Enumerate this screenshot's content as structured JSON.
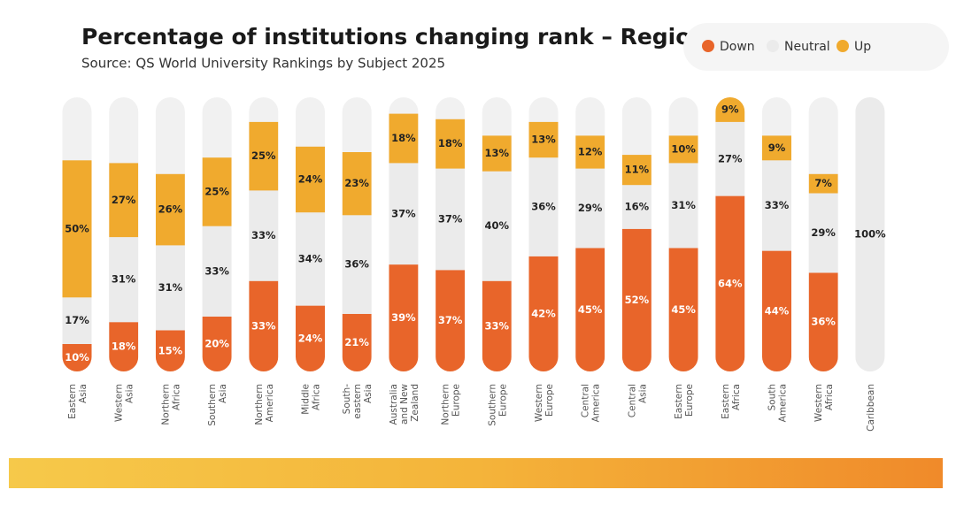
{
  "chart_data": {
    "type": "stacked_bar",
    "title": "Percentage of institutions changing rank – Region",
    "subtitle": "Source: QS World University Rankings by Subject 2025",
    "categories": [
      "Eastern Asia",
      "Western Asia",
      "Northern Africa",
      "Southern Asia",
      "Northern America",
      "Middle Africa",
      "South-eastern Asia",
      "Australia and New Zealand",
      "Northern Europe",
      "Southern Europe",
      "Western Europe",
      "Central America",
      "Central Asia",
      "Eastern Europe",
      "Eastern Africa",
      "South America",
      "Western Africa",
      "Caribbean"
    ],
    "ylim": [
      0,
      100
    ],
    "legend": "top-right",
    "series": [
      {
        "name": "Down",
        "color": "#e8652a",
        "values": [
          10,
          18,
          15,
          20,
          33,
          24,
          21,
          39,
          37,
          33,
          42,
          45,
          52,
          45,
          64,
          44,
          36,
          null
        ],
        "value_labels": [
          "10%",
          "18%",
          "15%",
          "20%",
          "33%",
          "24%",
          "21%",
          "39%",
          "37%",
          "33%",
          "42%",
          "45%",
          "52%",
          "45%",
          "64%",
          "44%",
          "36%",
          null
        ]
      },
      {
        "name": "Neutral",
        "color": "#ebebeb",
        "values": [
          17,
          31,
          31,
          33,
          33,
          34,
          36,
          37,
          37,
          40,
          36,
          29,
          16,
          31,
          27,
          33,
          29,
          100
        ],
        "value_labels": [
          "17%",
          "31%",
          "31%",
          "33%",
          "33%",
          "34%",
          "36%",
          "37%",
          "37%",
          "40%",
          "36%",
          "29%",
          "16%",
          "31%",
          "27%",
          "33%",
          "29%",
          "100%"
        ]
      },
      {
        "name": "Up",
        "color": "#f0aa2e",
        "values": [
          50,
          27,
          26,
          25,
          25,
          24,
          23,
          18,
          18,
          13,
          13,
          12,
          11,
          10,
          9,
          9,
          7,
          null
        ],
        "value_labels": [
          "50%",
          "27%",
          "26%",
          "25%",
          "25%",
          "24%",
          "23%",
          "18%",
          "18%",
          "13%",
          "13%",
          "12%",
          "11%",
          "10%",
          "9%",
          "9%",
          "7%",
          null
        ]
      }
    ]
  }
}
